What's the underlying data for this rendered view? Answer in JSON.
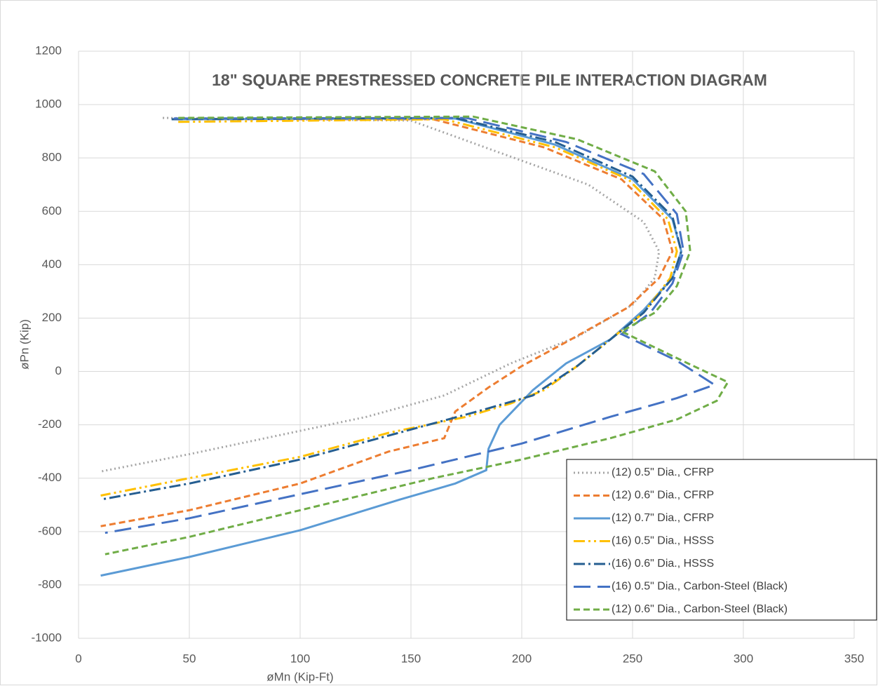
{
  "chart_data": {
    "type": "line",
    "title": "18\" SQUARE PRESTRESSED CONCRETE PILE INTERACTION DIAGRAM",
    "xlabel": "øMn (Kip-Ft)",
    "ylabel": "øPn (Kip)",
    "xlim": [
      0,
      350
    ],
    "ylim": [
      -1000,
      1200
    ],
    "xticks": [
      0,
      50,
      100,
      150,
      200,
      250,
      300,
      350
    ],
    "yticks": [
      -1000,
      -800,
      -600,
      -400,
      -200,
      0,
      200,
      400,
      600,
      800,
      1000,
      1200
    ],
    "grid": true,
    "legend": "lower right",
    "series": [
      {
        "name": "(12) 0.5\" Dia., CFRP",
        "color": "#a5a5a5",
        "line_style": "dotted",
        "x": [
          38,
          150,
          190,
          230,
          255,
          262,
          260,
          250,
          225,
          195,
          165,
          130,
          90,
          50,
          10
        ],
        "values": [
          950,
          940,
          820,
          700,
          560,
          450,
          350,
          250,
          130,
          30,
          -90,
          -170,
          -240,
          -310,
          -375
        ]
      },
      {
        "name": "(12) 0.6\" Dia., CFRP",
        "color": "#ed7d31",
        "line_style": "dashed",
        "x": [
          45,
          160,
          210,
          245,
          264,
          268,
          262,
          248,
          220,
          200,
          185,
          170,
          165,
          140,
          100,
          50,
          10
        ],
        "values": [
          945,
          945,
          840,
          720,
          570,
          450,
          350,
          240,
          110,
          20,
          -60,
          -150,
          -250,
          -300,
          -420,
          -520,
          -580
        ]
      },
      {
        "name": "(12) 0.7\" Dia., CFRP",
        "color": "#5b9bd5",
        "line_style": "solid",
        "x": [
          45,
          170,
          215,
          250,
          268,
          272,
          268,
          255,
          240,
          220,
          205,
          190,
          185,
          184,
          170,
          145,
          100,
          50,
          10
        ],
        "values": [
          945,
          948,
          850,
          720,
          570,
          450,
          350,
          230,
          120,
          30,
          -70,
          -200,
          -290,
          -370,
          -420,
          -480,
          -595,
          -695,
          -765
        ]
      },
      {
        "name": "(16) 0.5\" Dia., HSSS",
        "color": "#ffc000",
        "line_style": "dashdotdot",
        "x": [
          45,
          165,
          215,
          248,
          266,
          270,
          267,
          255,
          240,
          225,
          210,
          195,
          175,
          140,
          100,
          50,
          10
        ],
        "values": [
          935,
          945,
          840,
          720,
          570,
          450,
          350,
          220,
          120,
          20,
          -70,
          -120,
          -170,
          -230,
          -320,
          -400,
          -465
        ]
      },
      {
        "name": "(16) 0.6\" Dia., HSSS",
        "color": "#255e91",
        "line_style": "dashdot",
        "x": [
          42,
          170,
          215,
          250,
          268,
          272,
          268,
          255,
          240,
          225,
          205,
          180,
          140,
          100,
          50,
          10
        ],
        "values": [
          945,
          950,
          860,
          730,
          580,
          450,
          350,
          220,
          120,
          20,
          -90,
          -150,
          -240,
          -330,
          -420,
          -480
        ]
      },
      {
        "name": "(16) 0.5\" Dia., Carbon-Steel (Black)",
        "color": "#4472c4",
        "line_style": "longdash",
        "x": [
          43,
          175,
          220,
          255,
          270,
          273,
          268,
          258,
          245,
          270,
          287,
          270,
          240,
          200,
          150,
          100,
          50,
          12
        ],
        "values": [
          948,
          950,
          860,
          740,
          590,
          450,
          330,
          220,
          140,
          40,
          -50,
          -100,
          -170,
          -270,
          -370,
          -460,
          -550,
          -605
        ]
      },
      {
        "name": "(12) 0.6\" Dia., Carbon-Steel (Black)",
        "color": "#70ad47",
        "line_style": "dashed",
        "x": [
          45,
          178,
          225,
          260,
          274,
          276,
          270,
          260,
          245,
          275,
          293,
          288,
          270,
          240,
          200,
          160,
          100,
          50,
          12
        ],
        "values": [
          950,
          955,
          870,
          750,
          600,
          450,
          320,
          220,
          150,
          30,
          -40,
          -110,
          -180,
          -250,
          -330,
          -400,
          -520,
          -620,
          -685
        ]
      }
    ]
  }
}
